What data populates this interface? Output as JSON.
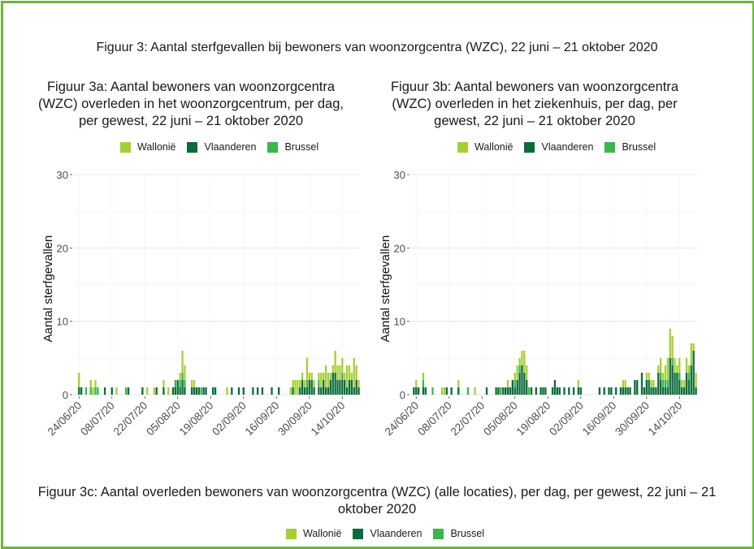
{
  "page": {
    "title": "Figuur 3: Aantal sterfgevallen bij bewoners van woonzorgcentra (WZC), 22 juni – 21 oktober 2020",
    "figure_3c_title": "Figuur 3c: Aantal overleden bewoners van woonzorgcentra (WZC) (alle locaties), per dag, per gewest, 22 juni – 21 oktober 2020",
    "frame_color": "#6ab43e"
  },
  "legend": [
    {
      "name": "Wallonië",
      "color": "#a6cf37"
    },
    {
      "name": "Vlaanderen",
      "color": "#0b6b3a"
    },
    {
      "name": "Brussel",
      "color": "#3cb54a"
    }
  ],
  "chart_data": [
    {
      "id": "3a",
      "type": "bar",
      "stacked": true,
      "title": "Figuur 3a: Aantal bewoners van woonzorgcentra (WZC) overleden in het woonzorgcentrum, per dag, per gewest, 22 juni – 21 oktober 2020",
      "xlabel": "",
      "ylabel": "Aantal sterfgevallen",
      "ylim": [
        0,
        30
      ],
      "yticks": [
        0,
        10,
        20,
        30
      ],
      "xticks": [
        "24/06/20",
        "08/07/20",
        "22/07/20",
        "05/08/20",
        "19/08/20",
        "02/09/20",
        "16/09/20",
        "30/09/20",
        "14/10/20"
      ],
      "xtick_day_index": [
        2,
        16,
        30,
        44,
        58,
        72,
        86,
        100,
        114
      ],
      "start_date": "22/06/20",
      "days": 122,
      "series": [
        {
          "name": "Wallonië",
          "values": [
            0,
            0,
            2,
            0,
            0,
            0,
            0,
            1,
            1,
            1,
            0,
            0,
            0,
            0,
            0,
            0,
            0,
            0,
            1,
            0,
            0,
            0,
            0,
            0,
            0,
            0,
            0,
            0,
            0,
            0,
            0,
            1,
            0,
            0,
            1,
            0,
            0,
            0,
            1,
            0,
            1,
            0,
            0,
            0,
            0,
            1,
            3,
            2,
            0,
            0,
            1,
            1,
            0,
            0,
            0,
            0,
            0,
            0,
            0,
            0,
            0,
            0,
            0,
            0,
            0,
            1,
            0,
            0,
            0,
            0,
            0,
            0,
            0,
            0,
            0,
            0,
            0,
            0,
            0,
            0,
            0,
            0,
            0,
            0,
            0,
            0,
            0,
            0,
            0,
            0,
            0,
            0,
            1,
            1,
            2,
            2,
            1,
            1,
            1,
            3,
            1,
            1,
            1,
            0,
            1,
            2,
            1,
            3,
            2,
            1,
            1,
            3,
            2,
            2,
            2,
            1,
            3,
            2,
            1,
            4,
            2,
            1
          ]
        },
        {
          "name": "Vlaanderen",
          "values": [
            0,
            0,
            1,
            1,
            0,
            0,
            0,
            0,
            0,
            0,
            0,
            0,
            0,
            1,
            0,
            0,
            1,
            0,
            0,
            0,
            0,
            0,
            0,
            1,
            0,
            0,
            0,
            0,
            0,
            1,
            0,
            0,
            0,
            0,
            0,
            1,
            0,
            0,
            1,
            0,
            0,
            0,
            1,
            1,
            2,
            1,
            2,
            1,
            0,
            0,
            1,
            1,
            1,
            1,
            0,
            1,
            1,
            0,
            0,
            1,
            1,
            0,
            0,
            0,
            0,
            0,
            0,
            1,
            0,
            0,
            1,
            0,
            1,
            0,
            0,
            0,
            1,
            0,
            1,
            0,
            1,
            0,
            0,
            0,
            1,
            0,
            0,
            1,
            0,
            0,
            0,
            0,
            0,
            1,
            0,
            0,
            1,
            2,
            1,
            1,
            2,
            2,
            1,
            0,
            1,
            1,
            2,
            1,
            1,
            2,
            3,
            3,
            2,
            2,
            2,
            2,
            1,
            2,
            2,
            1,
            2,
            1
          ]
        },
        {
          "name": "Brussel",
          "values": [
            0,
            0,
            0,
            0,
            0,
            1,
            0,
            1,
            0,
            1,
            1,
            0,
            0,
            0,
            0,
            0,
            0,
            0,
            0,
            0,
            0,
            0,
            1,
            0,
            0,
            0,
            0,
            0,
            0,
            0,
            0,
            0,
            0,
            0,
            0,
            0,
            0,
            0,
            0,
            0,
            0,
            0,
            0,
            1,
            0,
            1,
            1,
            1,
            0,
            0,
            0,
            0,
            0,
            0,
            1,
            0,
            0,
            0,
            0,
            0,
            0,
            0,
            0,
            0,
            0,
            0,
            0,
            0,
            0,
            0,
            0,
            0,
            0,
            0,
            0,
            0,
            0,
            0,
            0,
            0,
            0,
            0,
            0,
            0,
            0,
            0,
            0,
            0,
            0,
            0,
            0,
            0,
            0,
            0,
            0,
            0,
            0,
            0,
            0,
            1,
            0,
            0,
            0,
            0,
            1,
            0,
            0,
            0,
            0,
            0,
            0,
            0,
            0,
            0,
            1,
            0,
            0,
            0,
            0,
            0,
            0,
            0
          ]
        }
      ]
    },
    {
      "id": "3b",
      "type": "bar",
      "stacked": true,
      "title": "Figuur 3b: Aantal bewoners van woonzorgcentra (WZC) overleden in het ziekenhuis, per dag, per gewest, 22 juni – 21 oktober 2020",
      "xlabel": "",
      "ylabel": "Aantal sterfgevallen",
      "ylim": [
        0,
        30
      ],
      "yticks": [
        0,
        10,
        20,
        30
      ],
      "xticks": [
        "24/06/20",
        "08/07/20",
        "22/07/20",
        "05/08/20",
        "19/08/20",
        "02/09/20",
        "16/09/20",
        "30/09/20",
        "14/10/20"
      ],
      "xtick_day_index": [
        2,
        16,
        30,
        44,
        58,
        72,
        86,
        100,
        114
      ],
      "start_date": "22/06/20",
      "days": 122,
      "series": [
        {
          "name": "Wallonië",
          "values": [
            0,
            0,
            1,
            0,
            0,
            1,
            0,
            0,
            0,
            0,
            0,
            0,
            0,
            1,
            1,
            0,
            0,
            0,
            0,
            0,
            1,
            0,
            0,
            0,
            0,
            0,
            0,
            1,
            0,
            0,
            0,
            0,
            0,
            0,
            0,
            0,
            0,
            0,
            0,
            0,
            0,
            1,
            0,
            0,
            1,
            2,
            1,
            2,
            3,
            2,
            0,
            0,
            0,
            0,
            0,
            0,
            0,
            0,
            0,
            0,
            0,
            0,
            0,
            0,
            0,
            0,
            0,
            0,
            0,
            0,
            0,
            1,
            0,
            0,
            0,
            0,
            0,
            0,
            0,
            0,
            0,
            0,
            0,
            0,
            0,
            0,
            0,
            0,
            0,
            0,
            1,
            1,
            0,
            0,
            0,
            0,
            0,
            0,
            0,
            0,
            1,
            1,
            1,
            1,
            0,
            1,
            2,
            1,
            2,
            3,
            4,
            3,
            2,
            1,
            2,
            1,
            1,
            2,
            1,
            3,
            1,
            2
          ]
        },
        {
          "name": "Vlaanderen",
          "values": [
            0,
            1,
            1,
            1,
            0,
            1,
            1,
            0,
            0,
            0,
            0,
            0,
            0,
            0,
            0,
            1,
            0,
            1,
            0,
            0,
            1,
            0,
            0,
            0,
            0,
            0,
            0,
            0,
            0,
            0,
            0,
            0,
            1,
            0,
            0,
            0,
            1,
            1,
            0,
            1,
            1,
            1,
            1,
            2,
            1,
            2,
            3,
            4,
            3,
            2,
            0,
            1,
            0,
            1,
            0,
            1,
            1,
            1,
            0,
            0,
            1,
            2,
            1,
            1,
            0,
            1,
            0,
            1,
            0,
            1,
            0,
            1,
            1,
            0,
            0,
            0,
            0,
            0,
            0,
            0,
            1,
            0,
            1,
            0,
            1,
            1,
            0,
            1,
            0,
            1,
            1,
            1,
            1,
            1,
            0,
            2,
            2,
            0,
            3,
            1,
            2,
            2,
            1,
            1,
            1,
            3,
            2,
            1,
            1,
            1,
            5,
            4,
            3,
            3,
            2,
            1,
            1,
            3,
            2,
            4,
            6,
            1
          ]
        },
        {
          "name": "Brussel",
          "values": [
            0,
            0,
            0,
            0,
            0,
            1,
            0,
            0,
            0,
            1,
            0,
            0,
            0,
            0,
            0,
            0,
            0,
            0,
            0,
            0,
            0,
            0,
            0,
            0,
            1,
            0,
            0,
            0,
            0,
            0,
            0,
            0,
            0,
            0,
            0,
            0,
            0,
            0,
            1,
            0,
            0,
            0,
            0,
            0,
            1,
            0,
            1,
            0,
            0,
            0,
            1,
            0,
            0,
            0,
            0,
            0,
            0,
            0,
            0,
            0,
            0,
            0,
            0,
            0,
            0,
            0,
            0,
            0,
            0,
            0,
            0,
            0,
            0,
            0,
            0,
            0,
            0,
            0,
            0,
            0,
            0,
            0,
            0,
            0,
            0,
            0,
            0,
            0,
            0,
            0,
            0,
            0,
            0,
            0,
            0,
            0,
            0,
            0,
            0,
            0,
            0,
            0,
            0,
            0,
            0,
            0,
            1,
            1,
            1,
            1,
            0,
            1,
            0,
            0,
            1,
            0,
            0,
            0,
            1,
            0,
            0,
            0
          ]
        }
      ]
    }
  ]
}
